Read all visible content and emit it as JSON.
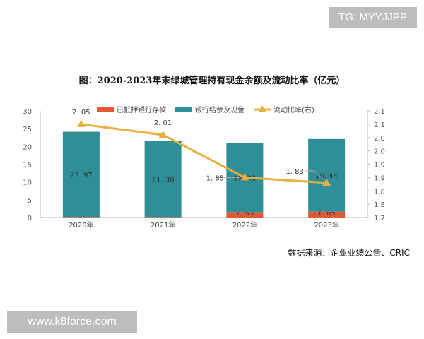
{
  "watermarks": {
    "top": "TG: MYYJJPP",
    "bottom": "www.k8force.com"
  },
  "source": "数据来源：企业业绩公告、CRIC",
  "chart_data": {
    "type": "bar",
    "title": "图：2020-2023年末绿城管理持有现金余额及流动比率（亿元）",
    "categories": [
      "2020年",
      "2021年",
      "2022年",
      "2023年"
    ],
    "series": [
      {
        "name": "已抵押银行存款",
        "kind": "bar",
        "stack": "a",
        "color": "#e05a38",
        "values": [
          0.16,
          0.13,
          1.53,
          1.65
        ]
      },
      {
        "name": "银行结余及现金",
        "kind": "bar",
        "stack": "a",
        "color": "#2f8f98",
        "values": [
          23.97,
          21.38,
          19.33,
          20.44
        ]
      },
      {
        "name": "流动比率(右)",
        "kind": "line",
        "axis": "right",
        "color": "#e8b040",
        "values": [
          2.05,
          2.01,
          1.85,
          1.83
        ]
      }
    ],
    "ylim": [
      0,
      30
    ],
    "yticks": [
      "0",
      "5",
      "10",
      "15",
      "20",
      "25",
      "30"
    ],
    "y2lim": [
      1.7,
      2.1
    ],
    "y2ticks": [
      "1.7",
      "1.8",
      "1.8",
      "1.9",
      "1.9",
      "2.0",
      "2.0",
      "2.1",
      "2.1"
    ],
    "legend": "top",
    "grid": false
  }
}
